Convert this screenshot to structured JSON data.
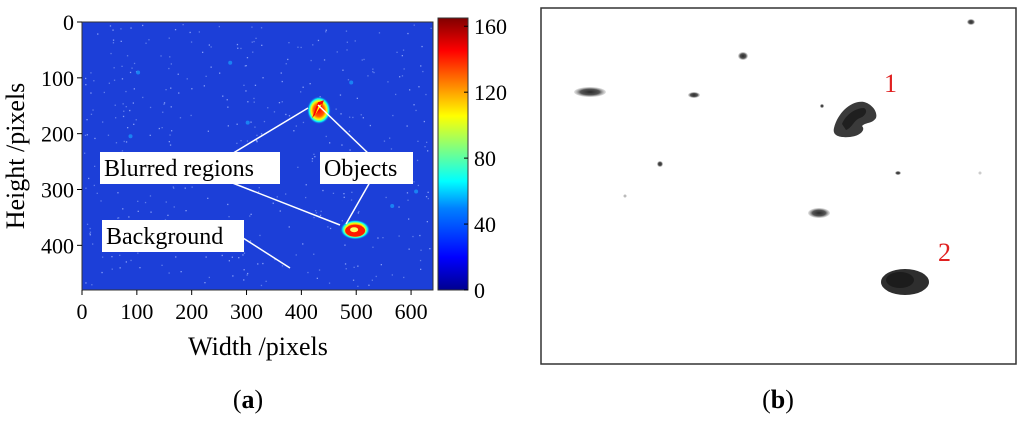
{
  "panel_a": {
    "caption_letter": "a",
    "x_axis_title": "Width /pixels",
    "y_axis_title": "Height /pixels",
    "x_ticks": [
      0,
      100,
      200,
      300,
      400,
      500,
      600
    ],
    "y_ticks": [
      0,
      100,
      200,
      300,
      400
    ],
    "x_range": [
      0,
      640
    ],
    "y_range": [
      0,
      480
    ],
    "colorbar_ticks": [
      0,
      40,
      80,
      120,
      160
    ],
    "colorbar_range": [
      0,
      165
    ],
    "colormap": [
      "#00008f",
      "#0000ff",
      "#0080ff",
      "#00ffff",
      "#80ff80",
      "#ffff00",
      "#ff8000",
      "#ff0000",
      "#800000"
    ],
    "background_color": "#1c3fd8",
    "annotations": {
      "blurred_regions": "Blurred regions",
      "objects": "Objects",
      "background": "Background"
    },
    "objects": [
      {
        "x": 432,
        "y": 158,
        "peak": 165
      },
      {
        "x": 498,
        "y": 372,
        "peak": 165
      }
    ]
  },
  "panel_b": {
    "caption_letter": "b",
    "labels": [
      {
        "text": "1",
        "color": "#e02020"
      },
      {
        "text": "2",
        "color": "#e02020"
      }
    ]
  }
}
